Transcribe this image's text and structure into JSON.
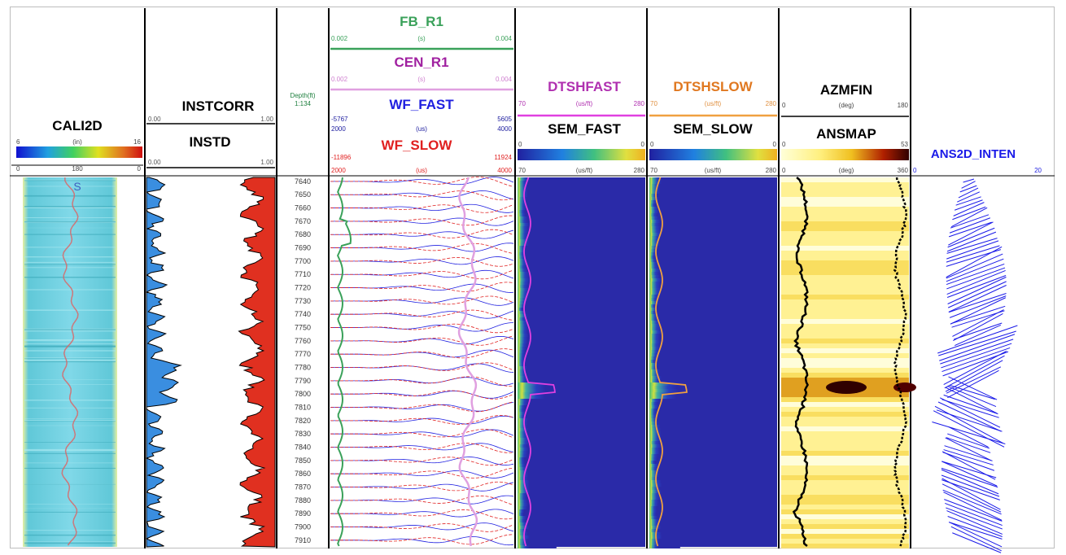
{
  "tracks": {
    "cali": {
      "title": "CALI2D",
      "scale_unit": "(in)",
      "scale_min": "6",
      "scale_max": "16",
      "scale2_left": "0",
      "scale2_mid": "180",
      "scale2_right": "0",
      "marker": "S"
    },
    "inst": {
      "title1": "INSTCORR",
      "range1_min": "0.00",
      "range1_max": "1.00",
      "title2": "INSTD",
      "range2_min": "0.00",
      "range2_max": "1.00"
    },
    "depth": {
      "title": "Depth(ft)",
      "scale": "1:134"
    },
    "waveform": {
      "fb_title": "FB_R1",
      "fb_min": "0.002",
      "fb_unit": "(s)",
      "fb_max": "0.004",
      "cen_title": "CEN_R1",
      "cen_min": "0.002",
      "cen_unit": "(s)",
      "cen_max": "0.004",
      "wff_title": "WF_FAST",
      "wff_amp_min": "-5767",
      "wff_amp_max": "5605",
      "wff_min": "2000",
      "wff_unit": "(us)",
      "wff_max": "4000",
      "wfs_title": "WF_SLOW",
      "wfs_amp_min": "-11896",
      "wfs_amp_max": "11924",
      "wfs_min": "2000",
      "wfs_unit": "(us)",
      "wfs_max": "4000"
    },
    "fast": {
      "dt_title": "DTSHFAST",
      "dt_min": "70",
      "dt_unit": "(us/ft)",
      "dt_max": "280",
      "sem_title": "SEM_FAST",
      "sem_min": "0",
      "sem_max": "0",
      "scale_min": "70",
      "scale_unit": "(us/ft)",
      "scale_max": "280"
    },
    "slow": {
      "dt_title": "DTSHSLOW",
      "dt_min": "70",
      "dt_unit": "(us/ft)",
      "dt_max": "280",
      "sem_title": "SEM_SLOW",
      "sem_min": "0",
      "sem_max": "0",
      "scale_min": "70",
      "scale_unit": "(us/ft)",
      "scale_max": "280"
    },
    "azm": {
      "title1": "AZMFIN",
      "r1_min": "0",
      "r1_unit": "(deg)",
      "r1_max": "180",
      "title2": "ANSMAP",
      "r2_min": "0",
      "r2_max": "53",
      "scale_min": "0",
      "scale_unit": "(deg)",
      "scale_max": "360"
    },
    "ans": {
      "title": "ANS2D_INTEN",
      "min": "0",
      "max": "20"
    }
  },
  "footer_fragment": "",
  "colors": {
    "fb": "#3aa15a",
    "cen": "#a020a0",
    "wf_fast": "#2020e0",
    "wf_slow": "#e02020",
    "dtshfast": "#b030b0",
    "dtshslow": "#e07820",
    "inst_fill": "#3a8ee0",
    "instd_fill": "#e03020",
    "sem_bg": "#2a2aa8",
    "ans": "#1a1ae8"
  },
  "chart_data": {
    "type": "well-log",
    "depth_unit": "ft",
    "depth_labels": [
      7640,
      7650,
      7660,
      7670,
      7680,
      7690,
      7700,
      7710,
      7720,
      7730,
      7740,
      7750,
      7760,
      7770,
      7780,
      7790,
      7800,
      7810,
      7820,
      7830,
      7840,
      7850,
      7860,
      7870,
      7880,
      7890,
      7900,
      7910
    ],
    "depth_range": [
      7637,
      7915
    ],
    "notable_event_depth": 7795,
    "series": [
      {
        "name": "CALI2D",
        "unit": "in",
        "range": [
          6,
          16
        ]
      },
      {
        "name": "INSTCORR",
        "range": [
          0,
          1
        ]
      },
      {
        "name": "INSTD",
        "range": [
          0,
          1
        ]
      },
      {
        "name": "FB_R1",
        "unit": "s",
        "range": [
          0.002,
          0.004
        ]
      },
      {
        "name": "CEN_R1",
        "unit": "s",
        "range": [
          0.002,
          0.004
        ]
      },
      {
        "name": "WF_FAST",
        "unit": "us",
        "range": [
          2000,
          4000
        ],
        "amplitude": [
          -5767,
          5605
        ]
      },
      {
        "name": "WF_SLOW",
        "unit": "us",
        "range": [
          2000,
          4000
        ],
        "amplitude": [
          -11896,
          11924
        ]
      },
      {
        "name": "DTSHFAST",
        "unit": "us/ft",
        "range": [
          70,
          280
        ]
      },
      {
        "name": "SEM_FAST",
        "range": [
          0,
          0
        ]
      },
      {
        "name": "DTSHSLOW",
        "unit": "us/ft",
        "range": [
          70,
          280
        ]
      },
      {
        "name": "SEM_SLOW",
        "range": [
          0,
          0
        ]
      },
      {
        "name": "AZMFIN",
        "unit": "deg",
        "range": [
          0,
          180
        ]
      },
      {
        "name": "ANSMAP",
        "range": [
          0,
          53
        ]
      },
      {
        "name": "ANS2D_INTEN",
        "range": [
          0,
          20
        ]
      }
    ]
  }
}
